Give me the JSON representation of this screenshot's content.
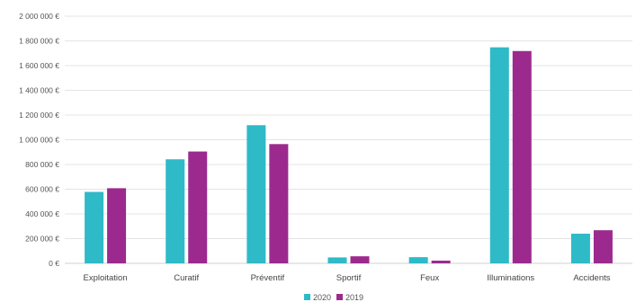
{
  "chart_data": {
    "type": "bar",
    "categories": [
      "Exploitation",
      "Curatif",
      "Préventif",
      "Sportif",
      "Feux",
      "Illuminations",
      "Accidents"
    ],
    "series": [
      {
        "name": "2020",
        "color": "#2fbac8",
        "values": [
          578000,
          842000,
          1118000,
          48000,
          50000,
          1748000,
          240000
        ]
      },
      {
        "name": "2019",
        "color": "#9c2a8e",
        "values": [
          608000,
          905000,
          965000,
          57000,
          22000,
          1718000,
          268000
        ]
      }
    ],
    "y_ticks": [
      0,
      200000,
      400000,
      600000,
      800000,
      1000000,
      1200000,
      1400000,
      1600000,
      1800000,
      2000000
    ],
    "y_tick_labels": [
      "0 €",
      "200 000 €",
      "400 000 €",
      "600 000 €",
      "800 000 €",
      "1 000 000 €",
      "1 200 000 €",
      "1 400 000 €",
      "1 600 000 €",
      "1 800 000 €",
      "2 000 000 €"
    ],
    "ylim": [
      0,
      2000000
    ],
    "grid": true,
    "legend_position": "bottom-center"
  }
}
